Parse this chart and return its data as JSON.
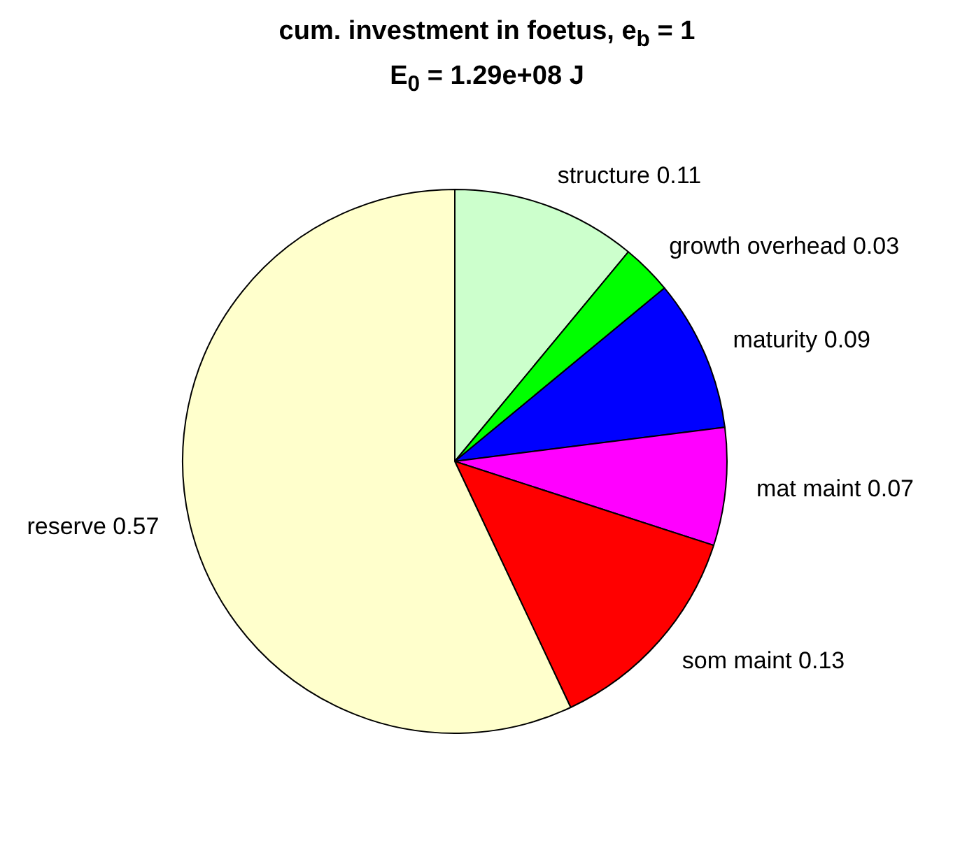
{
  "chart_data": {
    "type": "pie",
    "title": "cum. investment in foetus, e$_{b}$ = 1",
    "subtitle": "E$_{0}$ = 1.29e+08 J",
    "categories": [
      "structure 0.11",
      "growth overhead 0.03",
      "maturity 0.09",
      "mat maint 0.07",
      "som maint 0.13",
      "reserve 0.57"
    ],
    "values": [
      0.11,
      0.03,
      0.09,
      0.07,
      0.13,
      0.57
    ],
    "colors": [
      "#ccffcc",
      "#00ff00",
      "#0000ff",
      "#ff00ff",
      "#ff0000",
      "#ffffcc"
    ],
    "legend": false
  }
}
